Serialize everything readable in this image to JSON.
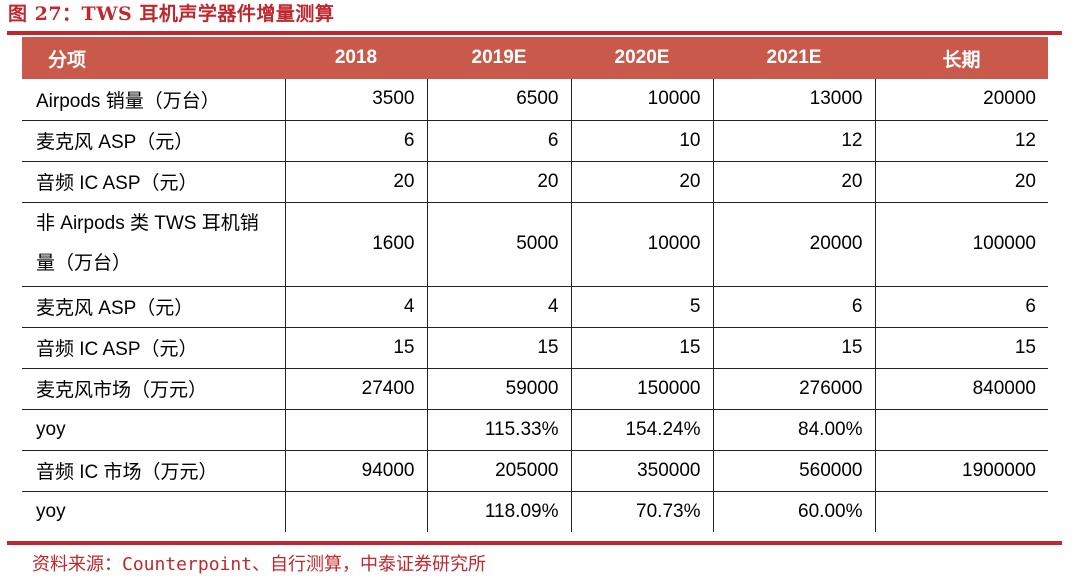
{
  "title": "图 27：TWS 耳机声学器件增量测算",
  "table": {
    "headers": [
      "分项",
      "2018",
      "2019E",
      "2020E",
      "2021E",
      "长期"
    ],
    "rows": [
      [
        "Airpods 销量（万台）",
        "3500",
        "6500",
        "10000",
        "13000",
        "20000"
      ],
      [
        "麦克风 ASP（元）",
        "6",
        "6",
        "10",
        "12",
        "12"
      ],
      [
        "音频 IC ASP（元）",
        "20",
        "20",
        "20",
        "20",
        "20"
      ],
      [
        "非 Airpods 类 TWS 耳机销量（万台）",
        "1600",
        "5000",
        "10000",
        "20000",
        "100000"
      ],
      [
        "麦克风 ASP（元）",
        "4",
        "4",
        "5",
        "6",
        "6"
      ],
      [
        "音频 IC ASP（元）",
        "15",
        "15",
        "15",
        "15",
        "15"
      ],
      [
        "麦克风市场（万元）",
        "27400",
        "59000",
        "150000",
        "276000",
        "840000"
      ],
      [
        "yoy",
        "",
        "115.33%",
        "154.24%",
        "84.00%",
        ""
      ],
      [
        "音频 IC 市场（万元）",
        "94000",
        "205000",
        "350000",
        "560000",
        "1900000"
      ],
      [
        "yoy",
        "",
        "118.09%",
        "70.73%",
        "60.00%",
        ""
      ]
    ]
  },
  "source": "资料来源：Counterpoint、自行测算，中泰证券研究所",
  "colors": {
    "accent": "#c0282e",
    "header_bg": "#c95a4b",
    "header_text": "#ffffff"
  }
}
